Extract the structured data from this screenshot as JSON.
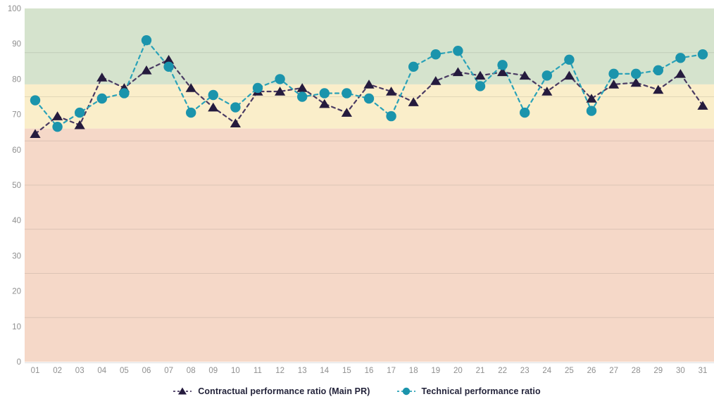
{
  "chart_data": {
    "type": "line",
    "title": "",
    "xlabel": "",
    "ylabel": "",
    "ylim": [
      0,
      100
    ],
    "y_ticks": [
      0,
      10,
      20,
      30,
      40,
      50,
      60,
      70,
      80,
      90,
      100
    ],
    "x_categories": [
      "01",
      "02",
      "03",
      "04",
      "05",
      "06",
      "07",
      "08",
      "09",
      "10",
      "11",
      "12",
      "13",
      "14",
      "15",
      "16",
      "17",
      "18",
      "19",
      "20",
      "21",
      "22",
      "23",
      "24",
      "25",
      "26",
      "27",
      "28",
      "29",
      "30",
      "31"
    ],
    "grid": {
      "horizontal_divisions": 8,
      "line_color": "rgba(110,105,95,0.18)",
      "axis_line_color": "#dcdcdc"
    },
    "legend_position": "bottom-center",
    "bands": [
      {
        "name": "good",
        "from": 78.5,
        "to": 100,
        "color": "#d5e3cd"
      },
      {
        "name": "warning",
        "from": 66,
        "to": 78.5,
        "color": "#faeeca"
      },
      {
        "name": "critical",
        "from": 0,
        "to": 66,
        "color": "#f5d8c8"
      }
    ],
    "series": [
      {
        "name": "Contractual performance ratio (Main PR)",
        "marker": "triangle",
        "color": "#251b3e",
        "line_color": "#4a3b63",
        "line_style": "dashed",
        "values": [
          64.5,
          69.5,
          67,
          80.5,
          77.5,
          82.5,
          85.5,
          77.5,
          72,
          67.5,
          76.5,
          76.5,
          77.5,
          73,
          70.5,
          78.5,
          76.5,
          73.5,
          79.5,
          82,
          81,
          82,
          81,
          76.5,
          81,
          74.5,
          78.5,
          79,
          77,
          81.5,
          72.5
        ]
      },
      {
        "name": "Technical performance ratio",
        "marker": "circle",
        "color": "#1b94ac",
        "line_color": "#2aa2b8",
        "line_style": "dashed",
        "values": [
          74,
          66.5,
          70.5,
          74.5,
          76,
          91,
          83.5,
          70.5,
          75.5,
          72,
          77.5,
          80,
          75,
          76,
          76,
          74.5,
          69.5,
          83.5,
          87,
          88,
          78,
          84,
          70.5,
          81,
          85.5,
          71,
          81.5,
          81.5,
          82.5,
          86,
          87
        ]
      }
    ],
    "axis_text_color": "#8f8f8f",
    "legend_text_color": "#23233a"
  }
}
